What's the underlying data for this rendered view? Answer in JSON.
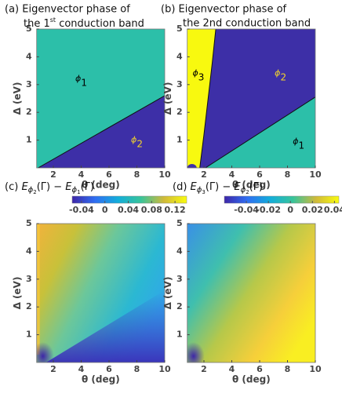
{
  "chart_data": [
    {
      "type": "phase",
      "title": "(a) Eigenvector phase of",
      "subtitle": {
        "text": "the 1",
        "sup": "st",
        "rest": " conduction band"
      },
      "xlabel": "θ (deg)",
      "ylabel": "Δ (eV)",
      "xlim": [
        0.8,
        10
      ],
      "ylim": [
        0,
        5
      ],
      "xticks": [
        2,
        4,
        6,
        8,
        10
      ],
      "yticks": [
        1,
        2,
        3,
        4,
        5
      ],
      "regions": [
        {
          "label": "ϕ",
          "sub": "1",
          "color": "#2cbfa9",
          "label_color": "#000000"
        },
        {
          "label": "ϕ",
          "sub": "2",
          "color": "#3d2fa7",
          "label_color": "#f2d32c"
        }
      ],
      "boundaries": [
        {
          "x": [
            0.9,
            10
          ],
          "y": [
            0,
            2.6
          ]
        }
      ]
    },
    {
      "type": "phase",
      "title": "(b) Eigenvector phase of",
      "subtitle": "the 2nd conduction band",
      "xlabel": "θ (deg)",
      "ylabel": "Δ (eV)",
      "xlim": [
        0.8,
        10
      ],
      "ylim": [
        0,
        5
      ],
      "xticks": [
        2,
        4,
        6,
        8,
        10
      ],
      "yticks": [
        1,
        2,
        3,
        4,
        5
      ],
      "regions": [
        {
          "label": "ϕ",
          "sub": "3",
          "color": "#f8f90f",
          "label_color": "#000000"
        },
        {
          "label": "ϕ",
          "sub": "2",
          "color": "#3d2fa7",
          "label_color": "#f2d32c"
        },
        {
          "label": "ϕ",
          "sub": "1",
          "color": "#2cbfa9",
          "label_color": "#000000"
        }
      ],
      "boundaries": [
        {
          "x": [
            1.7,
            2.0,
            2.3,
            2.6,
            2.85
          ],
          "y": [
            0,
            1.2,
            2.5,
            3.8,
            5
          ]
        },
        {
          "x": [
            2.1,
            10
          ],
          "y": [
            0,
            2.55
          ]
        }
      ]
    },
    {
      "type": "heatmap",
      "title": [
        "(c) ",
        "E",
        "ϕ",
        "2",
        "(Γ) − ",
        "E",
        "ϕ",
        "1",
        "(Γ)"
      ],
      "xlabel": "θ (deg)",
      "ylabel": "Δ (eV)",
      "xlim": [
        0.8,
        10
      ],
      "ylim": [
        0,
        5
      ],
      "xticks": [
        2,
        4,
        6,
        8,
        10
      ],
      "yticks": [
        1,
        2,
        3,
        4,
        5
      ],
      "colormap": "parula",
      "clim": [
        -0.056,
        0.14
      ],
      "cticks": [
        -0.04,
        0,
        0.04,
        0.08,
        0.12
      ]
    },
    {
      "type": "heatmap",
      "title": [
        "(d) ",
        "E",
        "ϕ",
        "3",
        "(Γ) − ",
        "E",
        "ϕ",
        "2",
        "(Γ)"
      ],
      "xlabel": "θ (deg)",
      "ylabel": "Δ (eV)",
      "xlim": [
        0.8,
        10
      ],
      "ylim": [
        0,
        5
      ],
      "xticks": [
        2,
        4,
        6,
        8,
        10
      ],
      "yticks": [
        1,
        2,
        3,
        4,
        5
      ],
      "colormap": "parula",
      "clim": [
        -0.06,
        0.044
      ],
      "cticks": [
        -0.04,
        -0.02,
        0,
        0.02,
        0.04
      ]
    }
  ]
}
